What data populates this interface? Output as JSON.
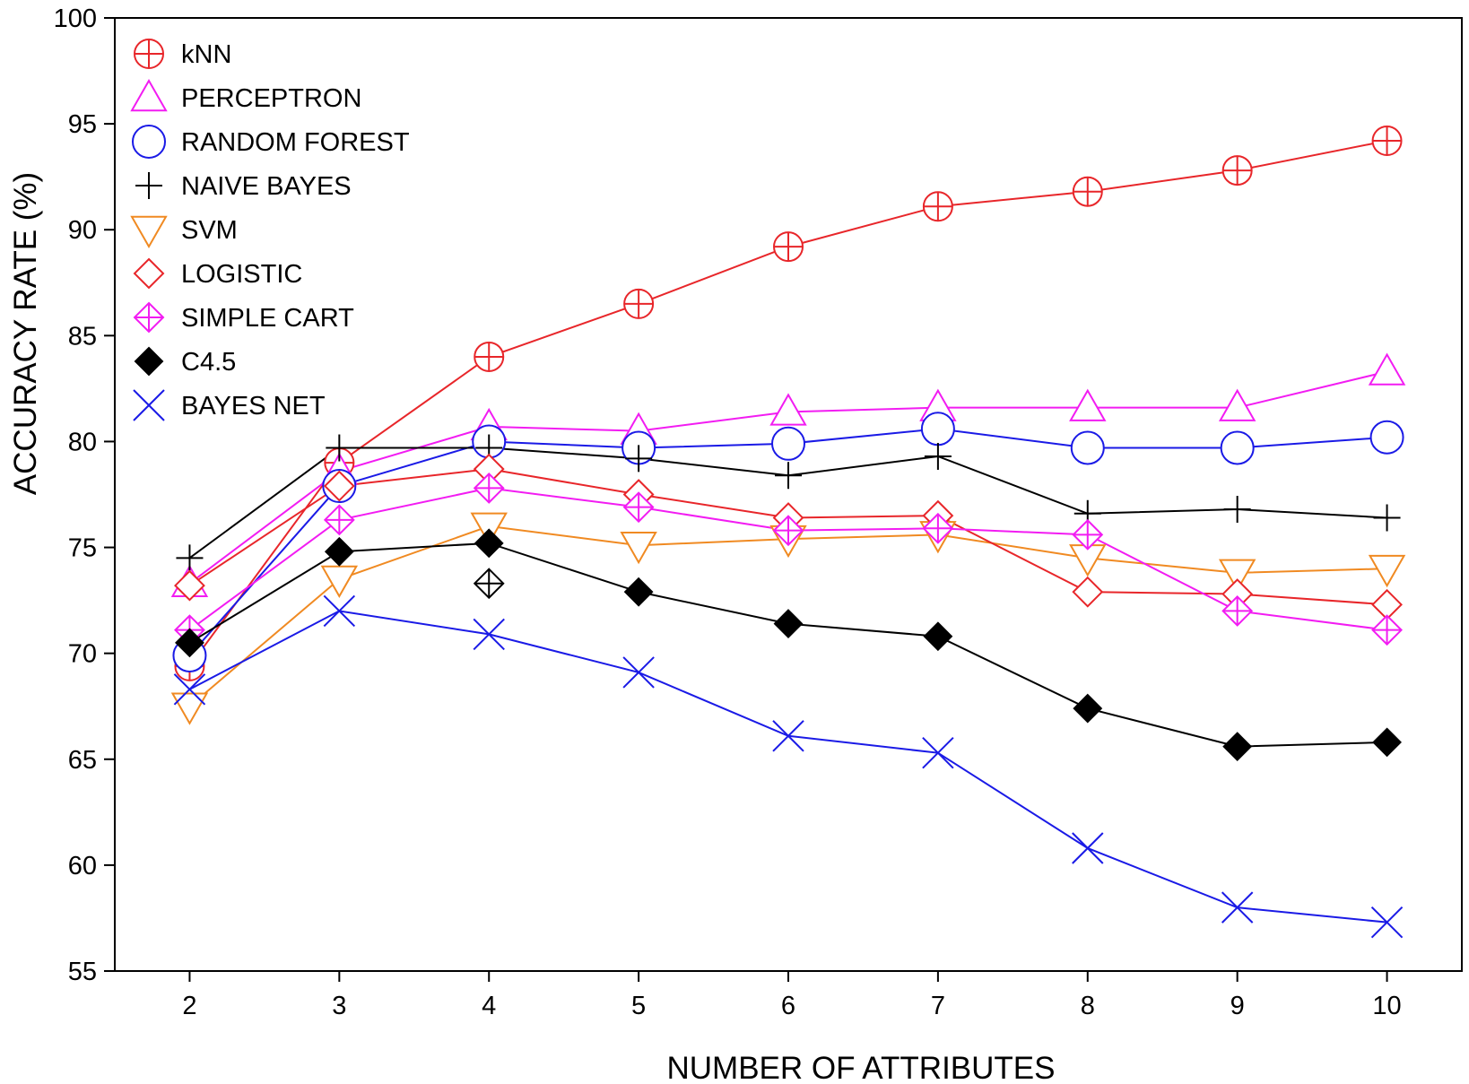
{
  "chart_data": {
    "type": "line",
    "xlabel": "NUMBER OF ATTRIBUTES",
    "ylabel": "ACCURACY RATE (%)",
    "x": [
      2,
      3,
      4,
      5,
      6,
      7,
      8,
      9,
      10
    ],
    "x_ticks": [
      "2",
      "3",
      "4",
      "5",
      "6",
      "7",
      "8",
      "9",
      "10"
    ],
    "y_ticks": [
      "55",
      "60",
      "65",
      "70",
      "75",
      "80",
      "85",
      "90",
      "95",
      "100"
    ],
    "xlim": [
      1.5,
      10.5
    ],
    "ylim": [
      55,
      100
    ],
    "grid": false,
    "legend_position": "top-left",
    "series": [
      {
        "name": "kNN",
        "color": "#e8262a",
        "marker": "circle-plus",
        "values": [
          69.4,
          79.0,
          84.0,
          86.5,
          89.2,
          91.1,
          91.8,
          92.8,
          94.2
        ]
      },
      {
        "name": "PERCEPTRON",
        "color": "#f21cf2",
        "marker": "triangle-up",
        "values": [
          73.3,
          78.6,
          80.7,
          80.5,
          81.4,
          81.6,
          81.6,
          81.6,
          83.3
        ]
      },
      {
        "name": "RANDOM FOREST",
        "color": "#1a1ae6",
        "marker": "circle",
        "values": [
          69.9,
          77.9,
          80.0,
          79.7,
          79.9,
          80.6,
          79.7,
          79.7,
          80.2
        ]
      },
      {
        "name": "NAIVE BAYES",
        "color": "#000000",
        "marker": "plus",
        "values": [
          74.5,
          79.7,
          79.7,
          79.2,
          78.4,
          79.3,
          76.6,
          76.8,
          76.4
        ]
      },
      {
        "name": "SVM",
        "color": "#f08a22",
        "marker": "triangle-down",
        "values": [
          67.5,
          73.5,
          76.0,
          75.1,
          75.4,
          75.6,
          74.5,
          73.8,
          74.0
        ]
      },
      {
        "name": "LOGISTIC",
        "color": "#e8262a",
        "marker": "diamond",
        "values": [
          73.2,
          77.9,
          78.7,
          77.5,
          76.4,
          76.5,
          72.9,
          72.8,
          72.3
        ]
      },
      {
        "name": "SIMPLE CART",
        "color": "#f21cf2",
        "marker": "diamond-plus",
        "values": [
          71.1,
          76.3,
          77.8,
          76.9,
          75.8,
          75.9,
          75.6,
          72.0,
          71.1
        ]
      },
      {
        "name": "C4.5",
        "color": "#000000",
        "marker": "diamond-filled",
        "values": [
          70.5,
          74.8,
          75.2,
          72.9,
          71.4,
          70.8,
          67.4,
          65.6,
          65.8
        ]
      },
      {
        "name": "BAYES NET",
        "color": "#1a1ae6",
        "marker": "x",
        "values": [
          68.3,
          72.0,
          70.9,
          69.1,
          66.1,
          65.3,
          60.8,
          58.0,
          57.3
        ]
      }
    ],
    "extra_markers": [
      {
        "x": 4,
        "y": 73.3,
        "color": "#000000",
        "marker": "diamond-plus"
      }
    ]
  }
}
